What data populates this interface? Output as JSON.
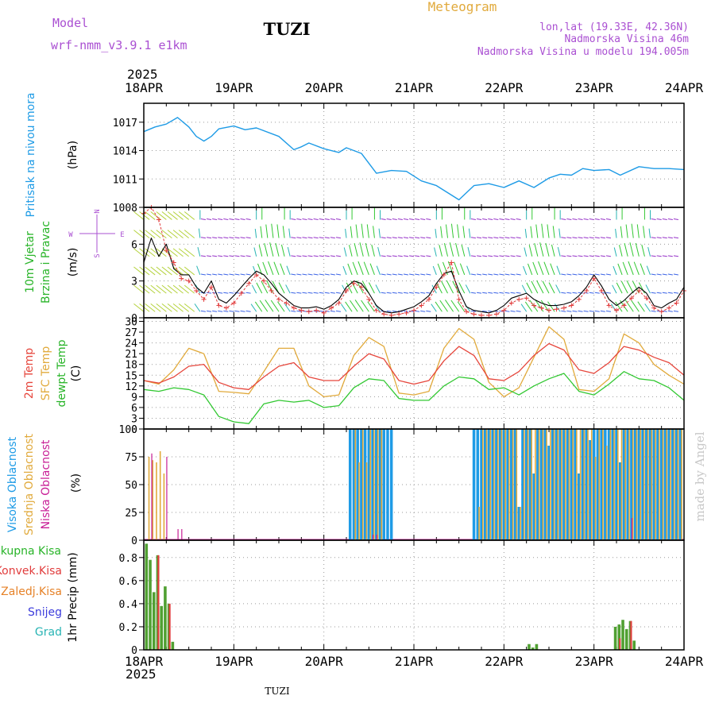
{
  "header": {
    "model_label": "Model",
    "model_name": "wrf-nmm_v3.9.1 e1km",
    "title": "TUZI",
    "product": "Meteogram",
    "coords": "lon,lat (19.33E, 42.36N)",
    "elevation": "Nadmorska Visina 46m",
    "model_elevation": "Nadmorska Visina u modelu 194.005m",
    "year": "2025",
    "bottom_year": "2025",
    "footer_title": "TUZI",
    "credit": "made by Angel"
  },
  "colors": {
    "pressure": "#1e9be6",
    "temp2m": "#e6463c",
    "sfc": "#e1aa3c",
    "dewpt": "#32c832",
    "high_cloud": "#1e9be6",
    "mid_cloud": "#e1aa3c",
    "low_cloud": "#c81e96",
    "purple": "#aa50d2",
    "total_precip": "#50a032",
    "konv_precip": "#e13c3c",
    "green_label": "#28b428",
    "red_label": "#e13c3c",
    "orange_label": "#e68228",
    "blue_label": "#3c3cdc",
    "cyan_label": "#28b4b4",
    "credit": "#c8c8c8"
  },
  "chart_data": [
    {
      "type": "line",
      "panel": "pressure",
      "ylabel": "Pritisak na nivou mora",
      "unit": "(hPa)",
      "ylim": [
        1008,
        1019
      ],
      "yticks": [
        1008,
        1011,
        1014,
        1017
      ],
      "xlim": [
        0,
        144
      ],
      "xticks": [
        "18APR",
        "19APR",
        "20APR",
        "21APR",
        "22APR",
        "23APR",
        "24APR"
      ],
      "grid": true,
      "series": [
        {
          "key": "pressure",
          "x": [
            0,
            3,
            6,
            9,
            12,
            14,
            16,
            18,
            20,
            24,
            27,
            30,
            36,
            40,
            42,
            44,
            48,
            52,
            54,
            58,
            62,
            66,
            70,
            74,
            78,
            82,
            84,
            88,
            92,
            96,
            100,
            104,
            108,
            111,
            114,
            117,
            120,
            124,
            127,
            132,
            136,
            140,
            144
          ],
          "y": [
            1016.0,
            1016.5,
            1016.8,
            1017.5,
            1016.5,
            1015.5,
            1015.0,
            1015.5,
            1016.3,
            1016.6,
            1016.2,
            1016.4,
            1015.5,
            1014.1,
            1014.4,
            1014.8,
            1014.2,
            1013.8,
            1014.3,
            1013.7,
            1011.6,
            1011.9,
            1011.8,
            1010.8,
            1010.3,
            1009.3,
            1008.8,
            1010.3,
            1010.5,
            1010.1,
            1010.8,
            1010.1,
            1011.1,
            1011.5,
            1011.4,
            1012.1,
            1011.9,
            1012.0,
            1011.4,
            1012.3,
            1012.1,
            1012.1,
            1012.0
          ]
        }
      ]
    },
    {
      "type": "line",
      "panel": "wind",
      "ylabel": [
        "10m Vjetar",
        "Brzina i Pravac"
      ],
      "unit": "(m/s)",
      "compass": [
        "N",
        "S",
        "W",
        "E"
      ],
      "ylim": [
        0,
        9
      ],
      "yticks": [
        0,
        3,
        6
      ],
      "xlim": [
        0,
        144
      ],
      "grid": true,
      "series": [
        {
          "key": "speed",
          "x": [
            0,
            2,
            4,
            6,
            8,
            10,
            12,
            14,
            16,
            18,
            20,
            22,
            24,
            26,
            28,
            30,
            32,
            34,
            36,
            38,
            40,
            42,
            44,
            46,
            48,
            50,
            52,
            54,
            56,
            58,
            60,
            62,
            64,
            66,
            68,
            70,
            72,
            74,
            76,
            78,
            80,
            82,
            84,
            86,
            88,
            90,
            92,
            94,
            96,
            98,
            100,
            102,
            104,
            106,
            108,
            110,
            112,
            114,
            116,
            118,
            120,
            122,
            124,
            126,
            128,
            130,
            132,
            134,
            136,
            138,
            140,
            142,
            144
          ],
          "y": [
            4.5,
            6.5,
            5.0,
            6.0,
            4.0,
            3.5,
            3.5,
            2.5,
            2.0,
            3.0,
            1.5,
            1.2,
            1.8,
            2.5,
            3.2,
            3.8,
            3.5,
            2.8,
            2.0,
            1.5,
            1.0,
            0.8,
            0.8,
            0.9,
            0.7,
            1.0,
            1.5,
            2.5,
            3.0,
            2.8,
            2.0,
            1.0,
            0.5,
            0.4,
            0.5,
            0.7,
            0.9,
            1.3,
            1.8,
            2.8,
            3.6,
            3.8,
            2.2,
            0.9,
            0.6,
            0.5,
            0.4,
            0.6,
            1.0,
            1.6,
            1.8,
            2.0,
            1.5,
            1.2,
            1.0,
            1.0,
            1.1,
            1.3,
            1.8,
            2.5,
            3.5,
            2.6,
            1.5,
            1.0,
            1.4,
            2.0,
            2.5,
            2.0,
            1.0,
            0.8,
            1.2,
            1.5,
            2.5
          ]
        },
        {
          "key": "gust",
          "x": [
            0,
            2,
            4,
            6,
            8,
            10,
            12,
            14,
            16,
            18,
            20,
            22,
            24,
            26,
            28,
            30,
            32,
            34,
            36,
            38,
            40,
            42,
            44,
            46,
            48,
            50,
            52,
            54,
            56,
            58,
            60,
            62,
            64,
            66,
            68,
            70,
            72,
            74,
            76,
            78,
            80,
            82,
            84,
            86,
            88,
            90,
            92,
            94,
            96,
            98,
            100,
            102,
            104,
            106,
            108,
            110,
            112,
            114,
            116,
            118,
            120,
            122,
            124,
            126,
            128,
            130,
            132,
            134,
            136,
            138,
            140,
            142,
            144
          ],
          "y": [
            8.5,
            9.0,
            8.0,
            5.5,
            4.5,
            3.2,
            3.0,
            2.2,
            1.5,
            2.5,
            1.0,
            0.8,
            1.2,
            2.0,
            2.8,
            3.5,
            3.0,
            2.2,
            1.5,
            1.2,
            0.8,
            0.6,
            0.5,
            0.6,
            0.4,
            0.8,
            1.2,
            2.2,
            2.8,
            2.5,
            1.5,
            0.6,
            0.3,
            0.2,
            0.3,
            0.4,
            0.6,
            1.0,
            1.5,
            2.5,
            3.5,
            4.5,
            1.5,
            0.5,
            0.3,
            0.2,
            0.2,
            0.3,
            0.6,
            1.2,
            1.5,
            1.6,
            1.0,
            0.8,
            0.6,
            0.7,
            0.8,
            1.0,
            1.5,
            2.2,
            3.2,
            2.2,
            1.0,
            0.6,
            1.0,
            1.6,
            2.2,
            1.6,
            0.8,
            0.5,
            0.8,
            1.2,
            2.2
          ]
        }
      ]
    },
    {
      "type": "line",
      "panel": "temperature",
      "ylabel": [
        "2m Temp",
        "SFC Temp",
        "dewpt Temp"
      ],
      "unit": "(C)",
      "ylim": [
        0,
        31
      ],
      "yticks": [
        0,
        3,
        6,
        9,
        12,
        15,
        18,
        21,
        24,
        27,
        30
      ],
      "xlim": [
        0,
        144
      ],
      "grid": true,
      "series": [
        {
          "key": "t2m",
          "x": [
            0,
            4,
            8,
            12,
            16,
            20,
            24,
            28,
            32,
            36,
            40,
            44,
            48,
            52,
            56,
            60,
            64,
            68,
            72,
            76,
            80,
            84,
            88,
            92,
            96,
            100,
            104,
            108,
            112,
            116,
            120,
            124,
            128,
            132,
            136,
            140,
            144
          ],
          "y": [
            13.5,
            12.8,
            14.5,
            17.5,
            18.0,
            13.0,
            11.5,
            11.0,
            14.5,
            17.5,
            18.5,
            14.5,
            13.5,
            13.5,
            17.5,
            21.0,
            19.5,
            13.5,
            12.5,
            13.5,
            19.0,
            23.0,
            20.5,
            14.0,
            13.5,
            16.0,
            20.5,
            23.8,
            22.0,
            16.5,
            15.5,
            18.5,
            23.0,
            22.0,
            20.0,
            18.5,
            15.0
          ]
        },
        {
          "key": "sfc",
          "x": [
            0,
            4,
            8,
            12,
            16,
            20,
            24,
            28,
            32,
            36,
            40,
            44,
            48,
            52,
            56,
            60,
            64,
            68,
            72,
            76,
            80,
            84,
            88,
            92,
            96,
            100,
            104,
            108,
            112,
            116,
            120,
            124,
            128,
            132,
            136,
            140,
            144
          ],
          "y": [
            13.5,
            12.5,
            16.5,
            22.5,
            21.0,
            10.5,
            10.2,
            9.8,
            16.0,
            22.5,
            22.5,
            12.0,
            9.0,
            9.5,
            20.5,
            25.5,
            23.0,
            10.0,
            9.5,
            10.5,
            22.5,
            28.0,
            25.0,
            13.0,
            9.0,
            11.5,
            20.0,
            28.5,
            25.0,
            11.0,
            10.5,
            14.0,
            26.5,
            24.0,
            18.0,
            15.0,
            12.5
          ]
        },
        {
          "key": "dewpt",
          "x": [
            0,
            4,
            8,
            12,
            16,
            20,
            24,
            28,
            32,
            36,
            40,
            44,
            48,
            52,
            56,
            60,
            64,
            68,
            72,
            76,
            80,
            84,
            88,
            92,
            96,
            100,
            104,
            108,
            112,
            116,
            120,
            124,
            128,
            132,
            136,
            140,
            144
          ],
          "y": [
            11.0,
            10.5,
            11.5,
            11.0,
            9.5,
            3.5,
            2.0,
            1.5,
            7.0,
            8.0,
            7.5,
            8.0,
            6.0,
            6.5,
            11.5,
            14.0,
            13.5,
            8.5,
            8.0,
            8.0,
            12.0,
            14.5,
            14.0,
            11.0,
            11.5,
            9.5,
            12.0,
            14.0,
            15.5,
            10.5,
            9.5,
            12.5,
            16.0,
            14.0,
            13.5,
            11.5,
            8.0
          ]
        }
      ]
    },
    {
      "type": "bar",
      "panel": "cloud",
      "ylabel": [
        "Visoka Oblacnost",
        "Srednja Oblacnost",
        "Niska Oblacnost"
      ],
      "unit": "(%)",
      "ylim": [
        0,
        100
      ],
      "yticks": [
        0,
        25,
        50,
        75,
        100
      ],
      "xlim": [
        0,
        144
      ],
      "grid": true,
      "series": [
        {
          "key": "high",
          "x": [
            55,
            56,
            57,
            58,
            59,
            60,
            61,
            62,
            63,
            64,
            65,
            66,
            88,
            89,
            90,
            91,
            92,
            93,
            94,
            95,
            96,
            97,
            98,
            99,
            100,
            101,
            102,
            103,
            104,
            105,
            106,
            107,
            108,
            109,
            110,
            111,
            112,
            113,
            114,
            115,
            116,
            117,
            118,
            119,
            120,
            121,
            122,
            123,
            124,
            125,
            126,
            127,
            128,
            129,
            130,
            131,
            132,
            133,
            134,
            135,
            136,
            137,
            138,
            139,
            140,
            141,
            142,
            143
          ],
          "y": [
            100,
            100,
            100,
            100,
            100,
            100,
            100,
            100,
            100,
            100,
            100,
            100,
            100,
            100,
            100,
            100,
            100,
            100,
            100,
            100,
            100,
            100,
            100,
            100,
            30,
            100,
            100,
            100,
            60,
            100,
            100,
            100,
            85,
            100,
            100,
            100,
            100,
            100,
            100,
            100,
            60,
            100,
            100,
            90,
            100,
            100,
            100,
            100,
            100,
            100,
            100,
            70,
            100,
            100,
            100,
            100,
            100,
            100,
            100,
            100,
            100,
            100,
            100,
            100,
            100,
            100,
            100,
            100
          ]
        },
        {
          "key": "mid",
          "x": [
            1,
            2,
            3,
            4,
            5,
            56,
            57,
            58,
            59,
            60,
            61,
            62,
            63,
            89,
            90,
            91,
            92,
            93,
            94,
            95,
            96,
            97,
            98,
            99,
            100,
            101,
            102,
            103,
            104,
            105,
            106,
            107,
            108,
            109,
            110,
            111,
            112,
            113,
            114,
            115,
            116,
            117,
            118,
            119,
            120,
            121,
            122,
            123,
            124,
            125,
            126,
            127,
            128,
            129,
            130,
            131,
            132,
            133,
            134,
            135,
            136,
            137,
            138,
            139,
            140,
            141,
            142,
            143
          ],
          "y": [
            75,
            72,
            70,
            80,
            60,
            100,
            70,
            100,
            70,
            100,
            100,
            100,
            100,
            30,
            100,
            100,
            100,
            100,
            100,
            100,
            100,
            100,
            100,
            100,
            30,
            100,
            100,
            100,
            100,
            100,
            100,
            100,
            100,
            100,
            100,
            100,
            100,
            100,
            100,
            100,
            100,
            100,
            100,
            100,
            75,
            100,
            100,
            85,
            100,
            100,
            100,
            100,
            100,
            100,
            100,
            100,
            100,
            100,
            100,
            100,
            100,
            100,
            100,
            100,
            100,
            100,
            100,
            100
          ]
        },
        {
          "key": "low",
          "x": [
            2,
            6,
            9,
            10,
            61,
            62,
            130
          ],
          "y": [
            78,
            75,
            10,
            10,
            5,
            5,
            20
          ]
        }
      ]
    },
    {
      "type": "bar",
      "panel": "precip",
      "ylabel": "1hr Precip (mm)",
      "legend": [
        "Ukupna Kisa",
        "Konvek.Kisa",
        "Zaledj.Kisa",
        "Snijeg",
        "Grad"
      ],
      "ylim": [
        0,
        0.95
      ],
      "yticks": [
        0,
        0.2,
        0.4,
        0.6,
        0.8
      ],
      "xlim": [
        0,
        144
      ],
      "grid": true,
      "series": [
        {
          "key": "total",
          "x": [
            0.7,
            1.7,
            2.7,
            3.7,
            4.7,
            5.7,
            6.7,
            7.7,
            102.7,
            103.7,
            104.7,
            125.7,
            126.7,
            127.7,
            128.7,
            129.7,
            130.7
          ],
          "y": [
            0.92,
            0.78,
            0.5,
            0.82,
            0.38,
            0.55,
            0.4,
            0.07,
            0.05,
            0.02,
            0.05,
            0.2,
            0.22,
            0.26,
            0.18,
            0.25,
            0.08
          ]
        },
        {
          "key": "konv",
          "x": [
            3.9,
            6.9,
            126.9,
            129.9
          ],
          "y": [
            0.82,
            0.4,
            0.1,
            0.25
          ]
        }
      ]
    }
  ]
}
